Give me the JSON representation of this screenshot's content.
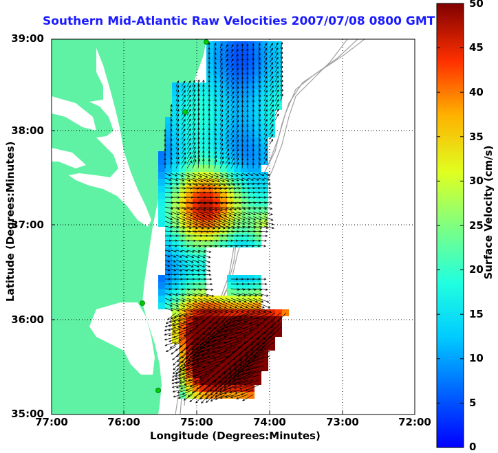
{
  "title": "Southern Mid-Atlantic Raw Velocities 2007/07/08 0800 GMT",
  "axes": {
    "xlabel": "Longitude (Degrees:Minutes)",
    "ylabel": "Latitude (Degrees:Minutes)",
    "x_ticks": [
      "77:00",
      "76:00",
      "75:00",
      "74:00",
      "73:00",
      "72:00"
    ],
    "y_ticks": [
      "39:00",
      "38:00",
      "37:00",
      "36:00",
      "35:00"
    ]
  },
  "colorbar": {
    "label": "Surface Velocity (cm/s)",
    "ticks": [
      "50",
      "45",
      "40",
      "35",
      "30",
      "25",
      "20",
      "15",
      "10",
      "5",
      "0"
    ],
    "min": 0,
    "max": 50
  },
  "colors": {
    "land": "#5ff2a5",
    "title": "#1a1aff",
    "bathymetry": "#a0a0a0",
    "station": "#00cc00"
  }
}
